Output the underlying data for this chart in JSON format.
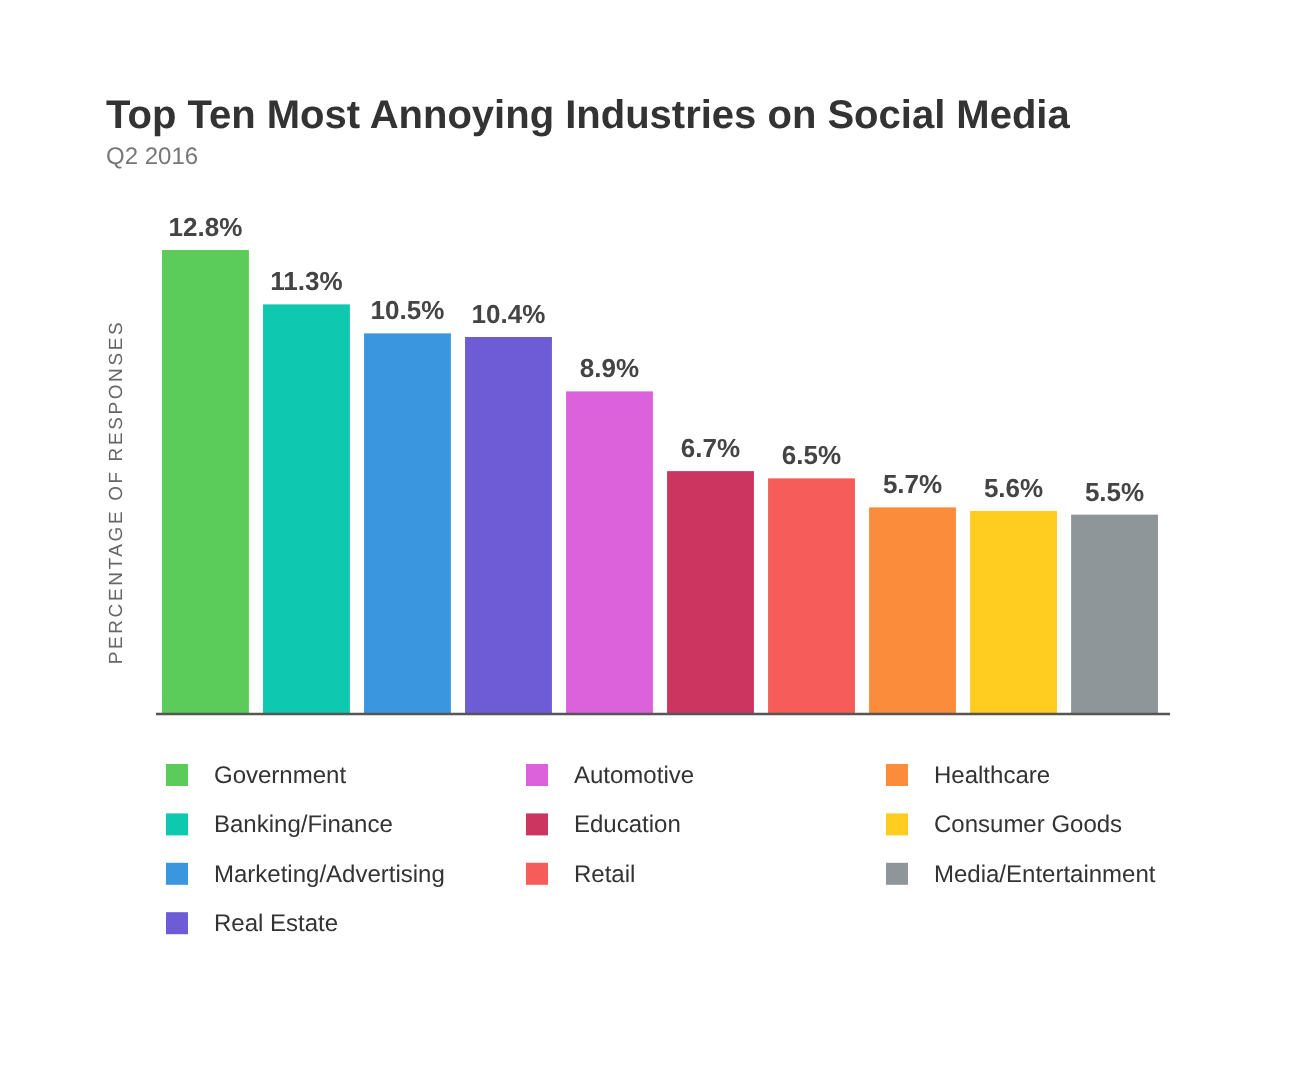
{
  "chart_data": {
    "type": "bar",
    "title": "Top Ten Most Annoying Industries on Social Media",
    "subtitle": "Q2 2016",
    "ylabel": "PERCENTAGE OF RESPONSES",
    "categories": [
      null,
      null,
      null,
      null,
      null,
      null,
      null,
      null,
      null,
      null
    ],
    "stacked": true,
    "series": [
      {
        "name": "Government",
        "color": "#5bcc5a",
        "values": [
          12.8,
          null,
          null,
          null,
          null,
          null,
          null,
          null,
          null,
          null
        ],
        "value_labels": [
          "12.8%",
          null,
          null,
          null,
          null,
          null,
          null,
          null,
          null,
          null
        ]
      },
      {
        "name": "Banking/Finance",
        "color": "#0ec9b0",
        "values": [
          null,
          11.3,
          null,
          null,
          null,
          null,
          null,
          null,
          null,
          null
        ],
        "value_labels": [
          null,
          "11.3%",
          null,
          null,
          null,
          null,
          null,
          null,
          null,
          null
        ]
      },
      {
        "name": "Marketing/Advertising",
        "color": "#3b96e0",
        "values": [
          null,
          null,
          10.5,
          null,
          null,
          null,
          null,
          null,
          null,
          null
        ],
        "value_labels": [
          null,
          null,
          "10.5%",
          null,
          null,
          null,
          null,
          null,
          null,
          null
        ]
      },
      {
        "name": "Real Estate",
        "color": "#6e5bd6",
        "values": [
          null,
          null,
          null,
          10.4,
          null,
          null,
          null,
          null,
          null,
          null
        ],
        "value_labels": [
          null,
          null,
          null,
          "10.4%",
          null,
          null,
          null,
          null,
          null,
          null
        ]
      },
      {
        "name": "Automotive",
        "color": "#dc62dc",
        "values": [
          null,
          null,
          null,
          null,
          8.9,
          null,
          null,
          null,
          null,
          null
        ],
        "value_labels": [
          null,
          null,
          null,
          null,
          "8.9%",
          null,
          null,
          null,
          null,
          null
        ]
      },
      {
        "name": "Education",
        "color": "#cc3560",
        "values": [
          null,
          null,
          null,
          null,
          null,
          6.7,
          null,
          null,
          null,
          null
        ],
        "value_labels": [
          null,
          null,
          null,
          null,
          null,
          "6.7%",
          null,
          null,
          null,
          null
        ]
      },
      {
        "name": "Retail",
        "color": "#f65d5a",
        "values": [
          null,
          null,
          null,
          null,
          null,
          null,
          6.5,
          null,
          null,
          null
        ],
        "value_labels": [
          null,
          null,
          null,
          null,
          null,
          null,
          "6.5%",
          null,
          null,
          null
        ]
      },
      {
        "name": "Healthcare",
        "color": "#fb8c3c",
        "values": [
          null,
          null,
          null,
          null,
          null,
          null,
          null,
          5.7,
          null,
          null
        ],
        "value_labels": [
          null,
          null,
          null,
          null,
          null,
          null,
          null,
          "5.7%",
          null,
          null
        ]
      },
      {
        "name": "Consumer Goods",
        "color": "#ffcc1f",
        "values": [
          null,
          null,
          null,
          null,
          null,
          null,
          null,
          null,
          5.6,
          null
        ],
        "value_labels": [
          null,
          null,
          null,
          null,
          null,
          null,
          null,
          null,
          "5.6%",
          null
        ]
      },
      {
        "name": "Media/Entertainment",
        "color": "#8f9699",
        "values": [
          null,
          null,
          null,
          null,
          null,
          null,
          null,
          null,
          null,
          5.5
        ],
        "value_labels": [
          null,
          null,
          null,
          null,
          null,
          null,
          null,
          null,
          null,
          "5.5%"
        ]
      }
    ],
    "ylim": [
      0,
      12.8
    ],
    "tick_labels": false,
    "legend": "bottom"
  }
}
